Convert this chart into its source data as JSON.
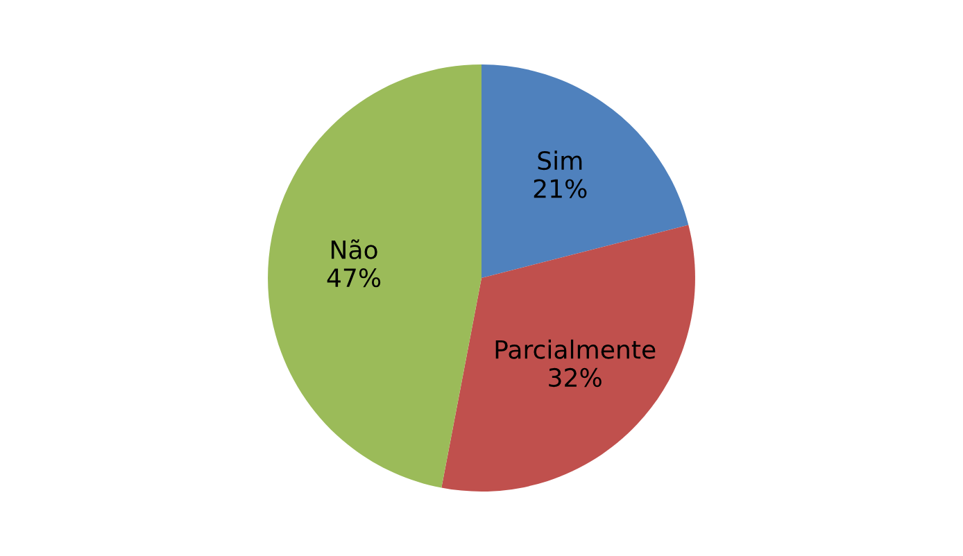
{
  "chart_data": {
    "type": "pie",
    "categories": [
      "Sim",
      "Parcialmente",
      "Não"
    ],
    "values": [
      21,
      32,
      47
    ],
    "value_labels": [
      "21%",
      "32%",
      "47%"
    ],
    "colors": [
      "#4f81bd",
      "#c0504d",
      "#9bbb59"
    ],
    "legend": false
  }
}
